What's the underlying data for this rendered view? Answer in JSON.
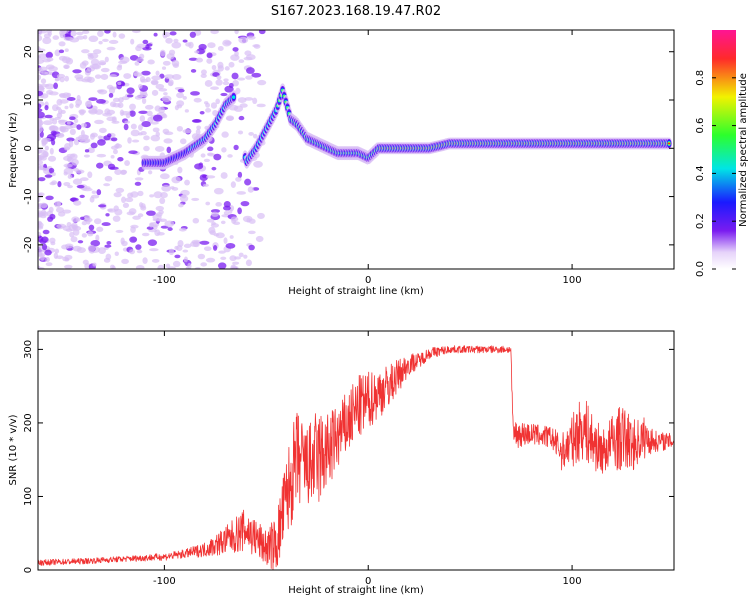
{
  "figure_title": "S167.2023.168.19.47.R02",
  "colors": {
    "snr_line": "#f03232",
    "spec_faint": "#d9bff5",
    "spec_mid": "#7a1cf0",
    "spec_blue": "#1a1aff",
    "spec_cyan": "#00e5e5",
    "spec_green": "#4cff4c",
    "spec_yellow": "#e0e000",
    "spec_red": "#ff2020"
  },
  "chart_data": [
    {
      "type": "heatmap",
      "title": "",
      "xlabel": "Height of straight line (km)",
      "ylabel": "Frequency (Hz)",
      "xlim": [
        -162,
        150
      ],
      "ylim": [
        -25,
        24.5
      ],
      "xticks": [
        -100,
        0,
        100
      ],
      "yticks": [
        -20,
        -10,
        0,
        10,
        20
      ],
      "grid": false,
      "ridge": {
        "x": [
          -110,
          -100,
          -90,
          -80,
          -75,
          -70,
          -65,
          -60,
          -55,
          -50,
          -45,
          -42,
          -40,
          -38,
          -35,
          -30,
          -25,
          -20,
          -15,
          -10,
          -5,
          0,
          5,
          10,
          20,
          30,
          40,
          60,
          100,
          148
        ],
        "y": [
          -3,
          -3,
          -1,
          2,
          5,
          9,
          11,
          -3,
          0,
          4,
          8,
          12,
          9,
          6,
          5,
          2,
          1,
          0,
          -1,
          -1,
          -1,
          -2,
          0,
          0,
          0,
          0,
          1,
          1,
          1,
          1
        ]
      },
      "colorbar": {
        "label": "Normalized spectral amplitude",
        "range": [
          0,
          1
        ],
        "ticks": [
          0.0,
          0.2,
          0.4,
          0.6,
          0.8
        ]
      }
    },
    {
      "type": "line",
      "title": "",
      "xlabel": "Height of straight line (km)",
      "ylabel": "SNR (10 * v/v)",
      "xlim": [
        -162,
        150
      ],
      "ylim": [
        0,
        325
      ],
      "xticks": [
        -100,
        0,
        100
      ],
      "yticks": [
        0,
        100,
        200,
        300
      ],
      "grid": false,
      "series": [
        {
          "x": [
            -162,
            -140,
            -120,
            -100,
            -90,
            -80,
            -70,
            -60,
            -50,
            -45,
            -40,
            -35,
            -30,
            -25,
            -20,
            -15,
            -10,
            -5,
            0,
            10,
            20,
            25,
            30,
            40,
            50,
            60,
            70,
            71,
            80,
            90,
            95,
            100,
            105,
            110,
            115,
            120,
            125,
            130,
            135,
            140,
            150
          ],
          "values": [
            10,
            12,
            15,
            18,
            22,
            28,
            40,
            55,
            30,
            35,
            100,
            150,
            140,
            150,
            160,
            180,
            200,
            220,
            230,
            250,
            280,
            285,
            295,
            300,
            300,
            300,
            300,
            185,
            185,
            180,
            160,
            175,
            195,
            175,
            160,
            175,
            180,
            170,
            180,
            175,
            175
          ],
          "amplitude": [
            4,
            4,
            4,
            5,
            6,
            10,
            20,
            30,
            25,
            40,
            60,
            70,
            55,
            70,
            55,
            45,
            45,
            45,
            40,
            30,
            15,
            10,
            8,
            5,
            5,
            5,
            5,
            20,
            15,
            15,
            25,
            35,
            45,
            40,
            30,
            40,
            45,
            35,
            30,
            15,
            10
          ]
        }
      ]
    }
  ]
}
